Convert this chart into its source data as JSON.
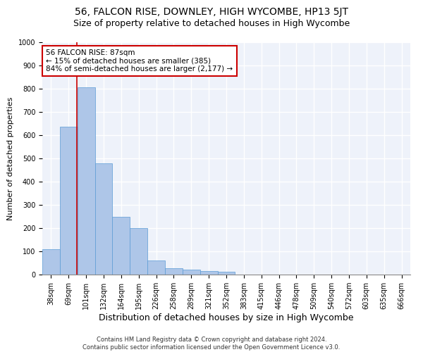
{
  "title": "56, FALCON RISE, DOWNLEY, HIGH WYCOMBE, HP13 5JT",
  "subtitle": "Size of property relative to detached houses in High Wycombe",
  "xlabel": "Distribution of detached houses by size in High Wycombe",
  "ylabel": "Number of detached properties",
  "bar_values": [
    110,
    635,
    805,
    480,
    250,
    200,
    60,
    27,
    20,
    14,
    11,
    0,
    0,
    0,
    0,
    0,
    0,
    0,
    0,
    0,
    0
  ],
  "x_labels": [
    "38sqm",
    "69sqm",
    "101sqm",
    "132sqm",
    "164sqm",
    "195sqm",
    "226sqm",
    "258sqm",
    "289sqm",
    "321sqm",
    "352sqm",
    "383sqm",
    "415sqm",
    "446sqm",
    "478sqm",
    "509sqm",
    "540sqm",
    "572sqm",
    "603sqm",
    "635sqm",
    "666sqm"
  ],
  "bar_color": "#aec6e8",
  "bar_edge_color": "#5b9bd5",
  "ylim": [
    0,
    1000
  ],
  "yticks": [
    0,
    100,
    200,
    300,
    400,
    500,
    600,
    700,
    800,
    900,
    1000
  ],
  "red_line_x": 1.48,
  "annotation_text": "56 FALCON RISE: 87sqm\n← 15% of detached houses are smaller (385)\n84% of semi-detached houses are larger (2,177) →",
  "annotation_box_color": "#ffffff",
  "annotation_box_edge": "#cc0000",
  "footer_line1": "Contains HM Land Registry data © Crown copyright and database right 2024.",
  "footer_line2": "Contains public sector information licensed under the Open Government Licence v3.0.",
  "background_color": "#eef2fa",
  "grid_color": "#ffffff",
  "title_fontsize": 10,
  "subtitle_fontsize": 9,
  "tick_fontsize": 7,
  "ylabel_fontsize": 8,
  "xlabel_fontsize": 9,
  "annotation_fontsize": 7.5,
  "footer_fontsize": 6
}
